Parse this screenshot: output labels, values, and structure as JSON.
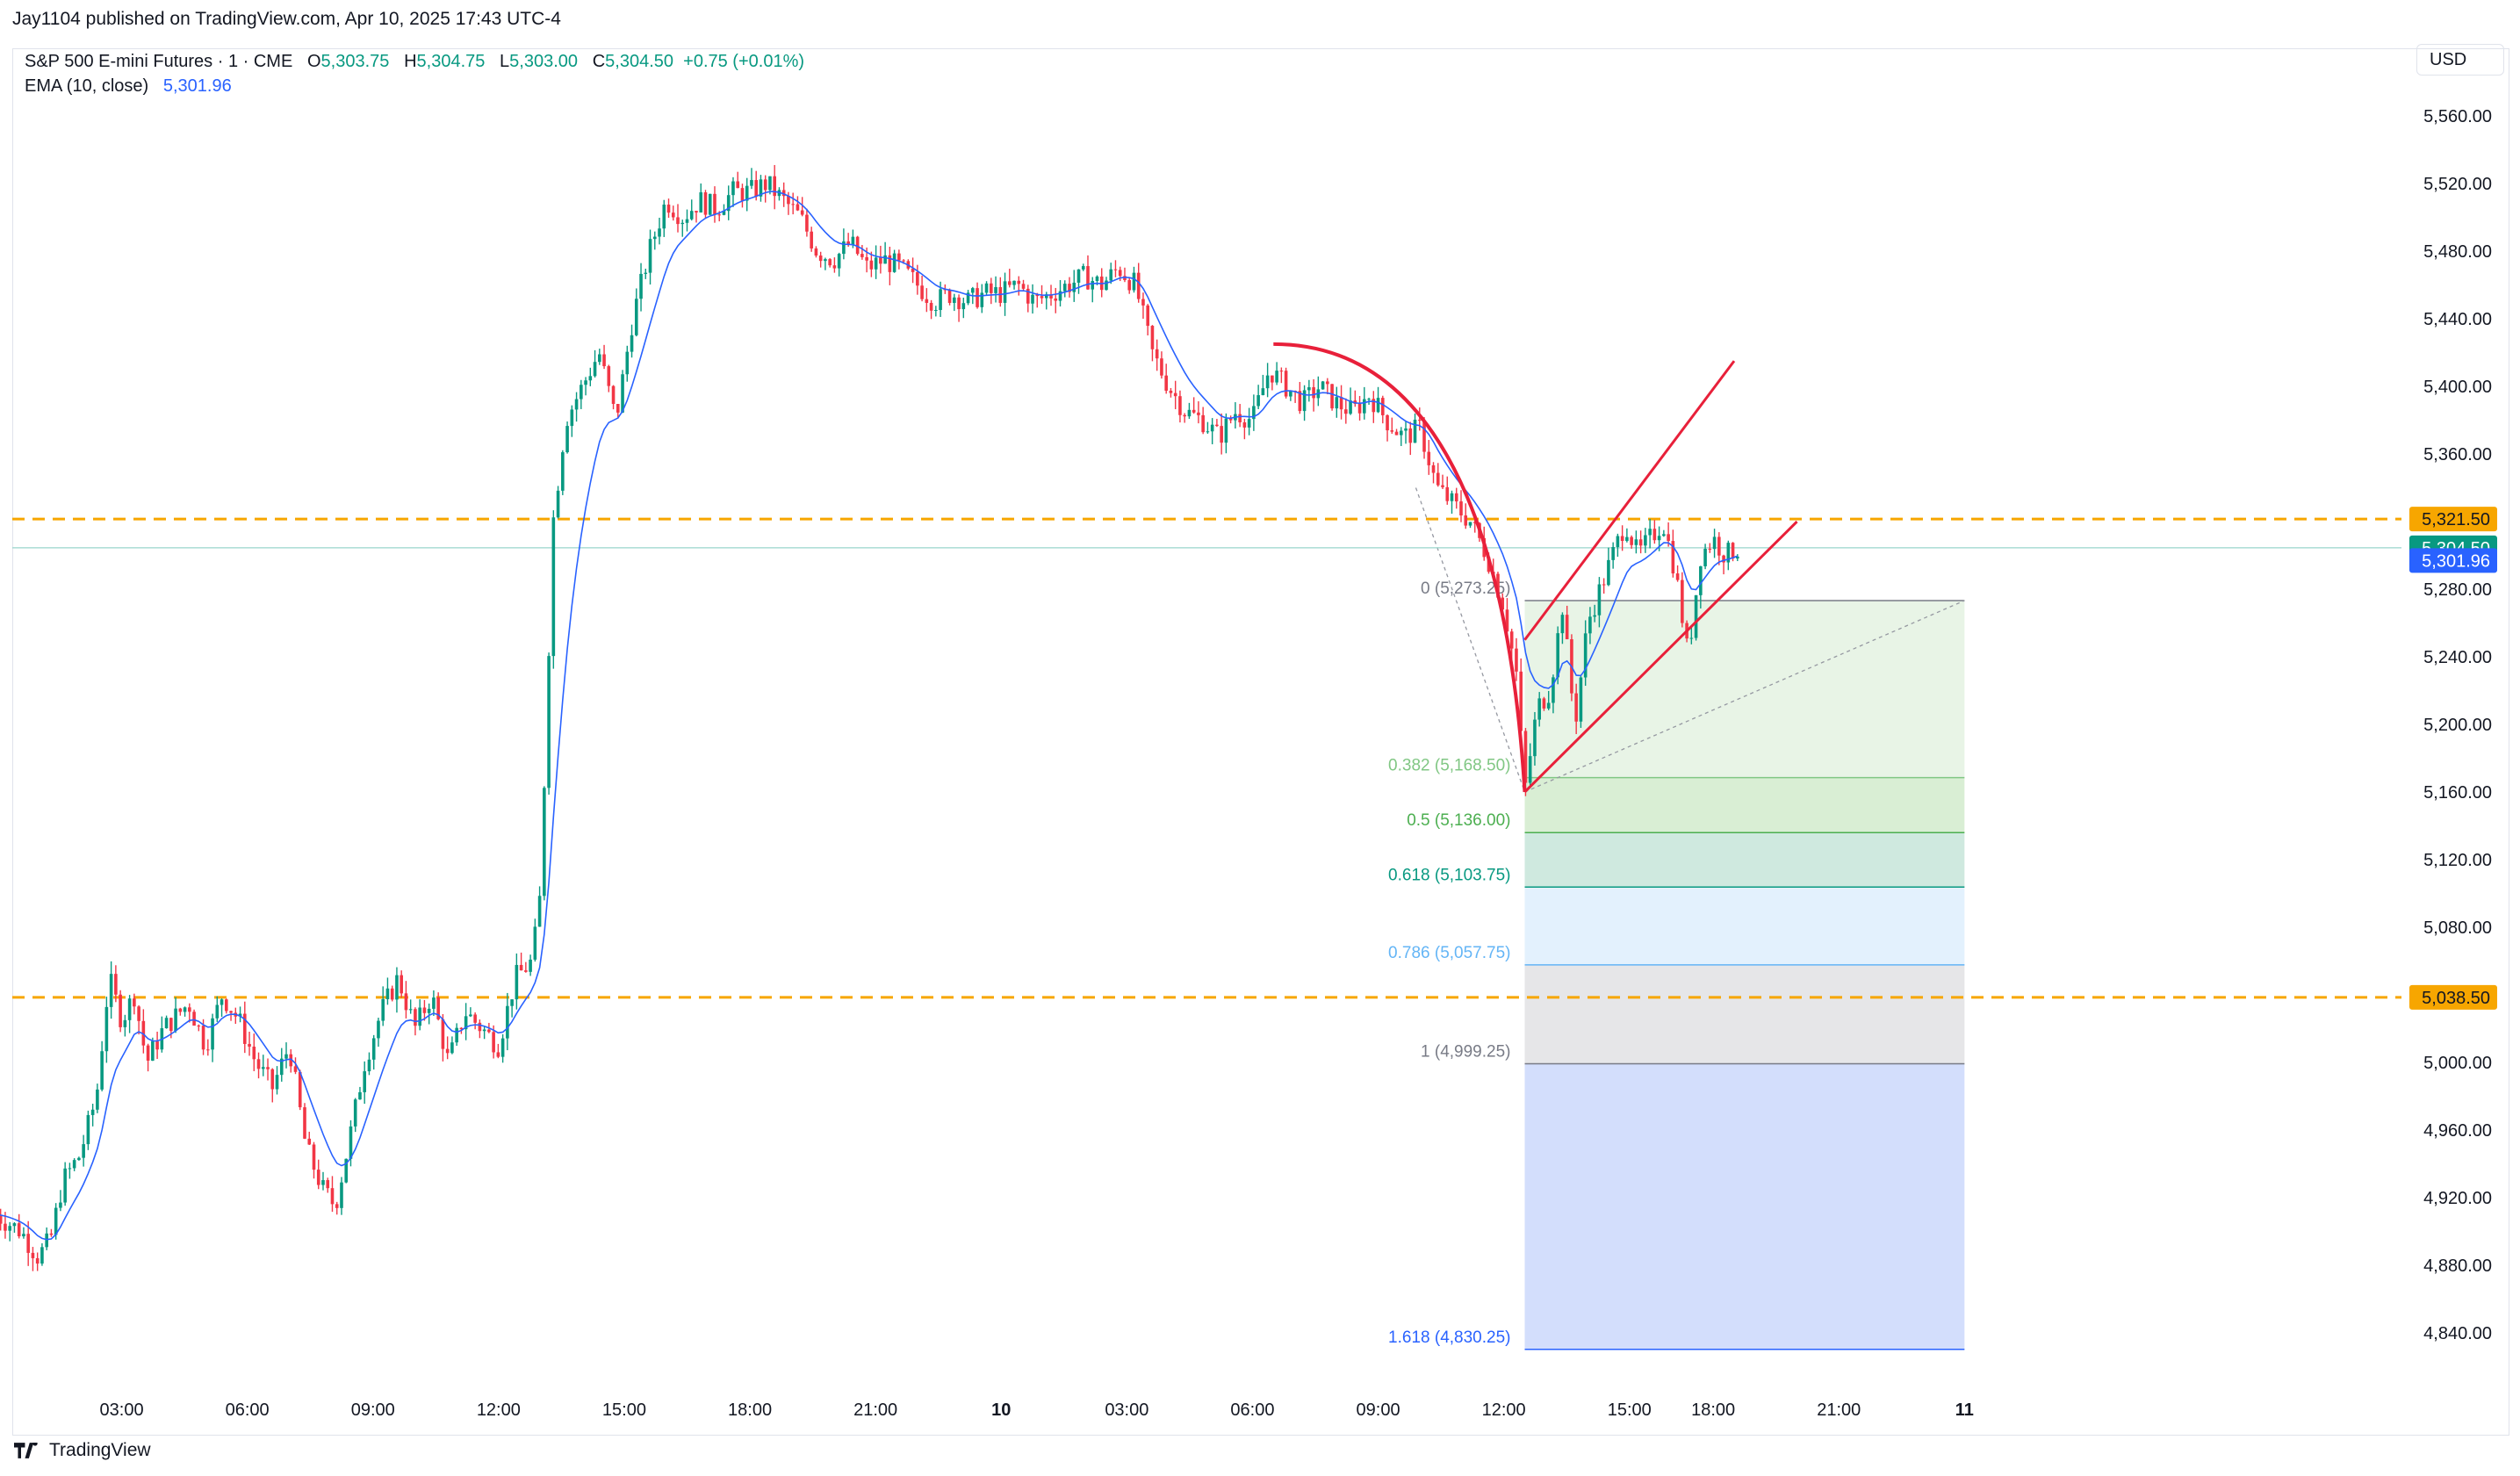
{
  "publisher": "Jay1104 published on TradingView.com, Apr 10, 2025 17:43 UTC-4",
  "legend": {
    "symbol": "S&P 500 E-mini Futures · 1 · CME",
    "o_label": "O",
    "o": "5,303.75",
    "h_label": "H",
    "h": "5,304.75",
    "l_label": "L",
    "l": "5,303.00",
    "c_label": "C",
    "c": "5,304.50",
    "change": "+0.75 (+0.01%)",
    "ema_label": "EMA (10, close)",
    "ema_value": "5,301.96"
  },
  "currency": "USD",
  "footer_brand": "TradingView",
  "colors": {
    "up": "#089981",
    "down": "#f23645",
    "ema": "#2962ff",
    "dashed_level": "#f7a600",
    "drawing_red": "#e8203a",
    "price_line": "#9ad5cc"
  },
  "chart_data": {
    "type": "candlestick",
    "interval": "1 minute",
    "ylim": [
      4820,
      5580
    ],
    "y_ticks": [
      4840,
      4880,
      4920,
      4960,
      5000,
      5040,
      5080,
      5120,
      5160,
      5200,
      5240,
      5280,
      5320,
      5360,
      5400,
      5440,
      5480,
      5520,
      5560
    ],
    "y_tick_labels": [
      "4,840.00",
      "4,880.00",
      "4,920.00",
      "4,960.00",
      "5,000.00",
      "5,040.00",
      "5,080.00",
      "5,120.00",
      "5,160.00",
      "5,200.00",
      "5,240.00",
      "5,280.00",
      "5,320.00",
      "5,360.00",
      "5,400.00",
      "5,440.00",
      "5,480.00",
      "5,520.00",
      "5,560.00"
    ],
    "x_ticks": [
      {
        "label": "03:00",
        "hours": 3
      },
      {
        "label": "06:00",
        "hours": 6
      },
      {
        "label": "09:00",
        "hours": 9
      },
      {
        "label": "12:00",
        "hours": 12
      },
      {
        "label": "15:00",
        "hours": 15
      },
      {
        "label": "18:00",
        "hours": 18
      },
      {
        "label": "21:00",
        "hours": 21
      },
      {
        "label": "10",
        "hours": 24,
        "bold": true
      },
      {
        "label": "03:00",
        "hours": 27
      },
      {
        "label": "06:00",
        "hours": 30
      },
      {
        "label": "09:00",
        "hours": 33
      },
      {
        "label": "12:00",
        "hours": 36
      },
      {
        "label": "15:00",
        "hours": 39
      },
      {
        "label": "18:00",
        "hours": 41
      },
      {
        "label": "21:00",
        "hours": 44
      },
      {
        "label": "11",
        "hours": 47,
        "bold": true
      }
    ],
    "price_path": [
      [
        0.0,
        4910
      ],
      [
        0.6,
        4900
      ],
      [
        1.0,
        4885
      ],
      [
        1.3,
        4895
      ],
      [
        1.6,
        4930
      ],
      [
        2.0,
        4945
      ],
      [
        2.4,
        4980
      ],
      [
        2.7,
        5050
      ],
      [
        3.0,
        5025
      ],
      [
        3.3,
        5040
      ],
      [
        3.6,
        5000
      ],
      [
        4.0,
        5020
      ],
      [
        4.6,
        5035
      ],
      [
        5.0,
        5010
      ],
      [
        5.4,
        5040
      ],
      [
        5.8,
        5025
      ],
      [
        6.2,
        5000
      ],
      [
        6.6,
        4985
      ],
      [
        7.0,
        5010
      ],
      [
        7.4,
        4950
      ],
      [
        7.8,
        4925
      ],
      [
        8.1,
        4915
      ],
      [
        8.4,
        4950
      ],
      [
        8.8,
        5000
      ],
      [
        9.2,
        5030
      ],
      [
        9.6,
        5050
      ],
      [
        10.0,
        5020
      ],
      [
        10.4,
        5040
      ],
      [
        10.8,
        5000
      ],
      [
        11.2,
        5030
      ],
      [
        11.6,
        5020
      ],
      [
        12.0,
        5010
      ],
      [
        12.4,
        5050
      ],
      [
        12.8,
        5060
      ],
      [
        13.0,
        5100
      ],
      [
        13.3,
        5320
      ],
      [
        13.6,
        5380
      ],
      [
        14.0,
        5400
      ],
      [
        14.4,
        5420
      ],
      [
        14.8,
        5380
      ],
      [
        15.2,
        5440
      ],
      [
        15.6,
        5480
      ],
      [
        16.0,
        5510
      ],
      [
        16.4,
        5500
      ],
      [
        16.8,
        5510
      ],
      [
        17.2,
        5505
      ],
      [
        17.6,
        5515
      ],
      [
        18.0,
        5515
      ],
      [
        18.4,
        5520
      ],
      [
        18.8,
        5510
      ],
      [
        19.2,
        5500
      ],
      [
        19.6,
        5480
      ],
      [
        20.0,
        5475
      ],
      [
        20.4,
        5485
      ],
      [
        20.8,
        5470
      ],
      [
        21.2,
        5475
      ],
      [
        21.6,
        5470
      ],
      [
        22.0,
        5460
      ],
      [
        22.4,
        5450
      ],
      [
        22.8,
        5455
      ],
      [
        23.2,
        5450
      ],
      [
        23.6,
        5455
      ],
      [
        24.0,
        5455
      ],
      [
        24.4,
        5460
      ],
      [
        24.8,
        5450
      ],
      [
        25.2,
        5455
      ],
      [
        25.6,
        5460
      ],
      [
        26.0,
        5465
      ],
      [
        26.4,
        5460
      ],
      [
        26.8,
        5470
      ],
      [
        27.2,
        5460
      ],
      [
        27.6,
        5420
      ],
      [
        28.0,
        5400
      ],
      [
        28.4,
        5385
      ],
      [
        28.8,
        5380
      ],
      [
        29.2,
        5370
      ],
      [
        29.6,
        5385
      ],
      [
        30.0,
        5380
      ],
      [
        30.4,
        5410
      ],
      [
        30.8,
        5400
      ],
      [
        31.2,
        5390
      ],
      [
        31.6,
        5400
      ],
      [
        32.0,
        5390
      ],
      [
        32.4,
        5385
      ],
      [
        32.8,
        5395
      ],
      [
        33.2,
        5380
      ],
      [
        33.6,
        5370
      ],
      [
        34.0,
        5375
      ],
      [
        34.4,
        5340
      ],
      [
        34.8,
        5330
      ],
      [
        35.2,
        5320
      ],
      [
        35.6,
        5300
      ],
      [
        36.0,
        5270
      ],
      [
        36.3,
        5230
      ],
      [
        36.5,
        5160
      ],
      [
        36.8,
        5210
      ],
      [
        37.1,
        5220
      ],
      [
        37.4,
        5270
      ],
      [
        37.7,
        5200
      ],
      [
        38.0,
        5260
      ],
      [
        38.3,
        5280
      ],
      [
        38.6,
        5300
      ],
      [
        38.9,
        5320
      ],
      [
        39.2,
        5300
      ],
      [
        39.5,
        5310
      ],
      [
        39.8,
        5320
      ],
      [
        40.1,
        5290
      ],
      [
        40.4,
        5240
      ],
      [
        40.7,
        5300
      ],
      [
        41.0,
        5310
      ],
      [
        41.3,
        5300
      ],
      [
        41.6,
        5304.5
      ]
    ],
    "ema_last": 5301.96,
    "horizontal_levels": [
      {
        "price": 5321.5,
        "label": "5,321.50",
        "style": "dashed"
      },
      {
        "price": 5038.5,
        "label": "5,038.50",
        "style": "dashed"
      }
    ],
    "last_price": {
      "price": 5304.5,
      "label": "5,304.50"
    },
    "ema_tag": {
      "price": 5301.96,
      "label": "5,301.96"
    },
    "fibonacci": {
      "start_hours": 36.5,
      "end_hours": 47.0,
      "levels": [
        {
          "ratio": "0",
          "price": 5273.25,
          "label": "0 (5,273.25)",
          "color": "#787b86",
          "fill": "#e8f4e6"
        },
        {
          "ratio": "0.382",
          "price": 5168.5,
          "label": "0.382 (5,168.50)",
          "color": "#81c784",
          "fill": "#d9eed4"
        },
        {
          "ratio": "0.5",
          "price": 5136.0,
          "label": "0.5 (5,136.00)",
          "color": "#4caf50",
          "fill": "#cfe9df"
        },
        {
          "ratio": "0.618",
          "price": 5103.75,
          "label": "0.618 (5,103.75)",
          "color": "#089981",
          "fill": "#e3f1fd"
        },
        {
          "ratio": "0.786",
          "price": 5057.75,
          "label": "0.786 (5,057.75)",
          "color": "#64b5f6",
          "fill": "#e6e6e8"
        },
        {
          "ratio": "1",
          "price": 4999.25,
          "label": "1 (4,999.25)",
          "color": "#787b86",
          "fill": "#d3defc"
        },
        {
          "ratio": "1.618",
          "price": 4830.25,
          "label": "1.618 (4,830.25)",
          "color": "#2962ff",
          "fill": null
        }
      ]
    },
    "drawings": {
      "arc": [
        [
          30.5,
          5425
        ],
        [
          33.0,
          5410
        ],
        [
          35.0,
          5340
        ],
        [
          36.0,
          5260
        ],
        [
          36.5,
          5160
        ]
      ],
      "channel_upper": [
        [
          36.5,
          5250
        ],
        [
          38.0,
          5310
        ],
        [
          39.0,
          5350
        ],
        [
          40.0,
          5380
        ],
        [
          41.5,
          5415
        ]
      ],
      "channel_lower": [
        [
          36.5,
          5160
        ],
        [
          39.0,
          5220
        ],
        [
          41.0,
          5265
        ],
        [
          43.0,
          5320
        ]
      ]
    }
  }
}
